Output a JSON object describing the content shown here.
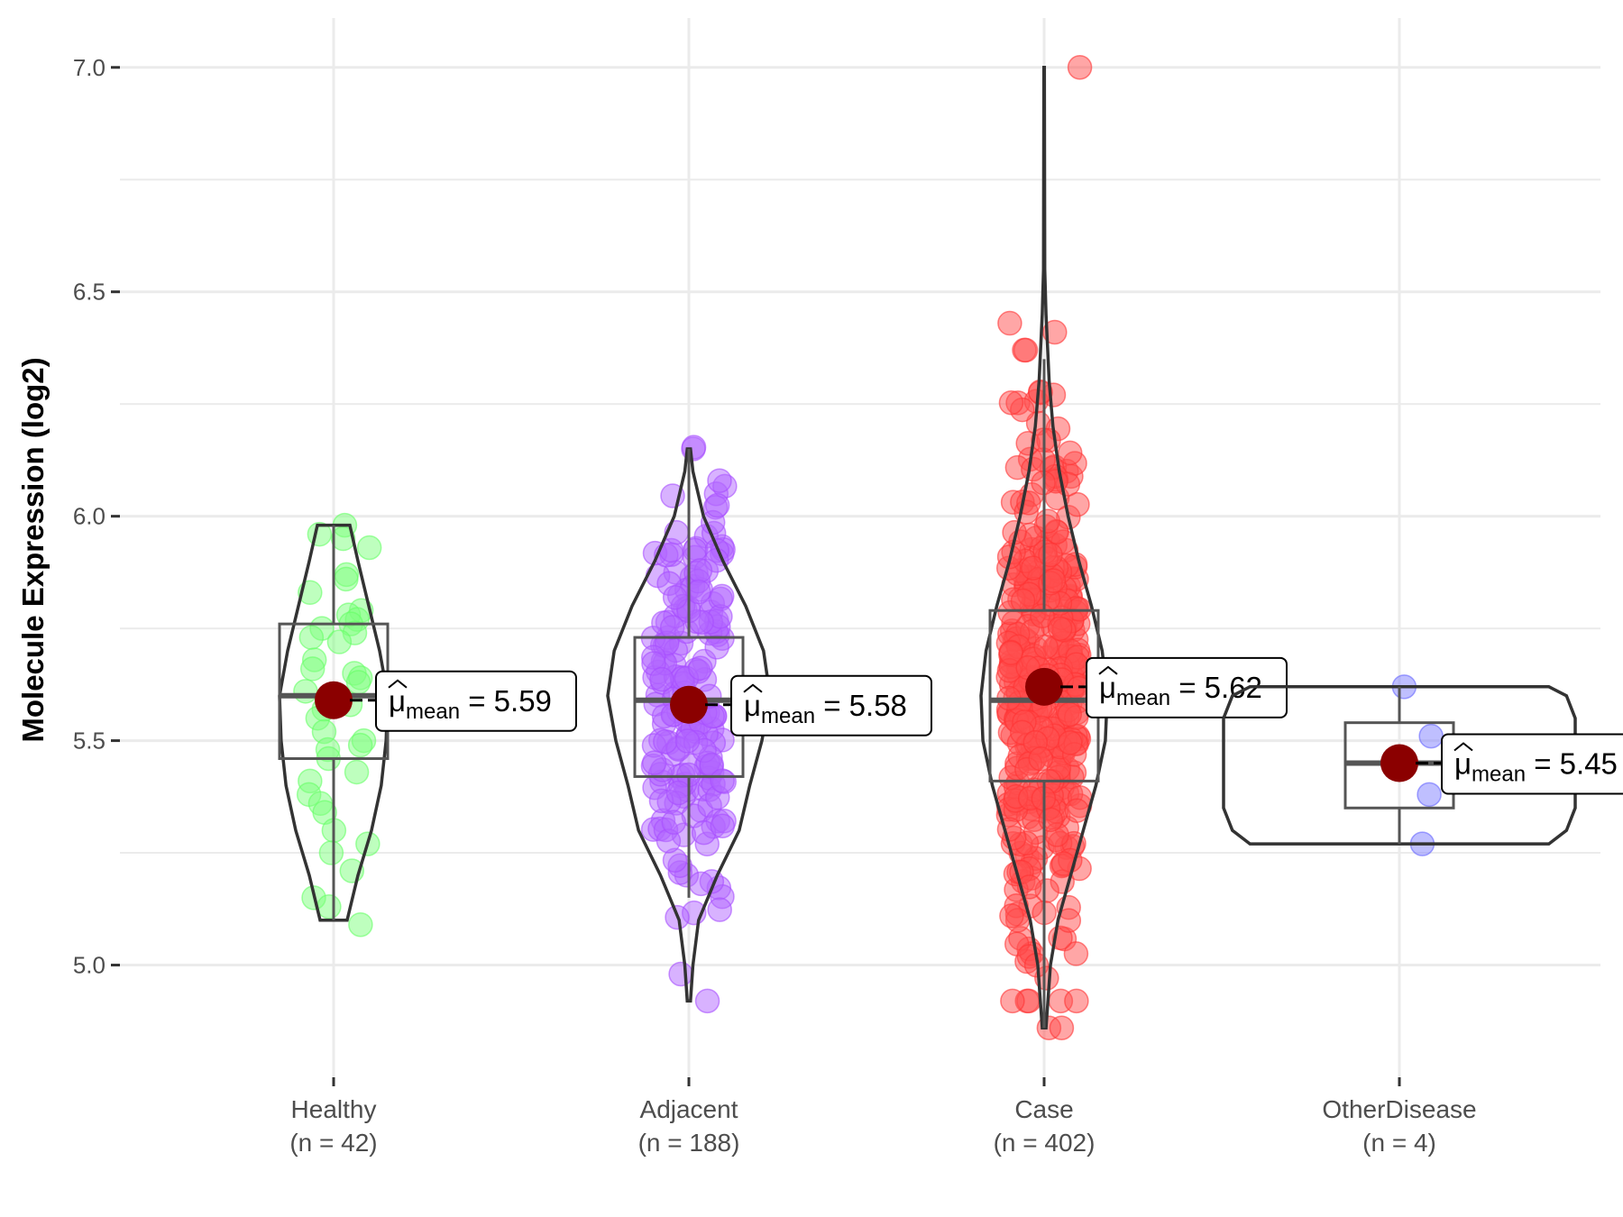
{
  "chart_data": {
    "type": "violin",
    "title": "",
    "xlabel": "",
    "ylabel": "Molecule Expression (log2)",
    "ylim": [
      4.75,
      7.11
    ],
    "yticks": [
      5.0,
      5.5,
      6.0,
      6.5,
      7.0
    ],
    "ytick_labels": [
      "5.0",
      "5.5",
      "6.0",
      "6.5",
      "7.0"
    ],
    "grid": true,
    "legend": "none",
    "mean_label_template": "= ",
    "mean_symbol": "μ̂",
    "mean_subscript": "mean",
    "groups": [
      {
        "name": "Healthy",
        "n_label": "(n = 42)",
        "n": 42,
        "color": "#66ff66",
        "point_color": "#7dff7d",
        "violin_range": [
          5.1,
          5.98
        ],
        "whisker_low": 5.1,
        "q1": 5.46,
        "median": 5.6,
        "q3": 5.76,
        "whisker_high": 5.98,
        "mean": 5.59,
        "mean_label": "5.59",
        "density_profile": [
          [
            5.1,
            0.25
          ],
          [
            5.2,
            0.45
          ],
          [
            5.3,
            0.7
          ],
          [
            5.4,
            0.88
          ],
          [
            5.5,
            0.97
          ],
          [
            5.6,
            1.0
          ],
          [
            5.7,
            0.85
          ],
          [
            5.8,
            0.65
          ],
          [
            5.9,
            0.45
          ],
          [
            5.98,
            0.3
          ]
        ],
        "points": [
          5.98,
          5.96,
          5.95,
          5.93,
          5.87,
          5.86,
          5.83,
          5.79,
          5.78,
          5.77,
          5.76,
          5.75,
          5.74,
          5.73,
          5.72,
          5.68,
          5.66,
          5.65,
          5.64,
          5.63,
          5.61,
          5.6,
          5.58,
          5.57,
          5.55,
          5.52,
          5.5,
          5.49,
          5.48,
          5.46,
          5.43,
          5.41,
          5.38,
          5.36,
          5.34,
          5.3,
          5.27,
          5.25,
          5.21,
          5.15,
          5.13,
          5.09
        ]
      },
      {
        "name": "Adjacent",
        "n_label": "(n = 188)",
        "n": 188,
        "color": "#a64dff",
        "point_color": "#b266ff",
        "violin_range": [
          4.92,
          6.15
        ],
        "whisker_low": 5.15,
        "q1": 5.42,
        "median": 5.59,
        "q3": 5.73,
        "whisker_high": 6.15,
        "mean": 5.58,
        "mean_label": "5.58",
        "density_profile": [
          [
            4.92,
            0.02
          ],
          [
            5.0,
            0.05
          ],
          [
            5.1,
            0.12
          ],
          [
            5.2,
            0.35
          ],
          [
            5.3,
            0.62
          ],
          [
            5.4,
            0.75
          ],
          [
            5.5,
            0.9
          ],
          [
            5.6,
            1.0
          ],
          [
            5.7,
            0.92
          ],
          [
            5.8,
            0.7
          ],
          [
            5.9,
            0.42
          ],
          [
            6.0,
            0.18
          ],
          [
            6.1,
            0.05
          ],
          [
            6.15,
            0.02
          ]
        ]
      },
      {
        "name": "Case",
        "n_label": "(n = 402)",
        "n": 402,
        "color": "#ff3333",
        "point_color": "#ff4d4d",
        "violin_range": [
          4.86,
          7.0
        ],
        "whisker_low": 4.86,
        "q1": 5.41,
        "median": 5.59,
        "q3": 5.79,
        "whisker_high": 6.35,
        "mean": 5.62,
        "mean_label": "5.62",
        "density_profile": [
          [
            4.86,
            0.03
          ],
          [
            5.0,
            0.1
          ],
          [
            5.1,
            0.22
          ],
          [
            5.2,
            0.42
          ],
          [
            5.3,
            0.62
          ],
          [
            5.4,
            0.82
          ],
          [
            5.5,
            0.97
          ],
          [
            5.6,
            1.0
          ],
          [
            5.7,
            0.92
          ],
          [
            5.8,
            0.75
          ],
          [
            5.9,
            0.55
          ],
          [
            6.0,
            0.38
          ],
          [
            6.1,
            0.24
          ],
          [
            6.2,
            0.14
          ],
          [
            6.3,
            0.08
          ],
          [
            6.45,
            0.03
          ],
          [
            6.55,
            0.01
          ],
          [
            7.0,
            0.005
          ]
        ]
      },
      {
        "name": "OtherDisease",
        "n_label": "(n = 4)",
        "n": 4,
        "color": "#6666ff",
        "point_color": "#8080ff",
        "violin_range": [
          5.27,
          5.62
        ],
        "whisker_low": 5.27,
        "q1": 5.35,
        "median": 5.45,
        "q3": 5.54,
        "whisker_high": 5.62,
        "mean": 5.45,
        "mean_label": "5.45",
        "density_profile": [
          [
            5.27,
            0.85
          ],
          [
            5.3,
            0.95
          ],
          [
            5.35,
            1.0
          ],
          [
            5.45,
            1.0
          ],
          [
            5.55,
            1.0
          ],
          [
            5.6,
            0.95
          ],
          [
            5.62,
            0.85
          ]
        ],
        "points": [
          5.62,
          5.51,
          5.38,
          5.27
        ]
      }
    ]
  }
}
